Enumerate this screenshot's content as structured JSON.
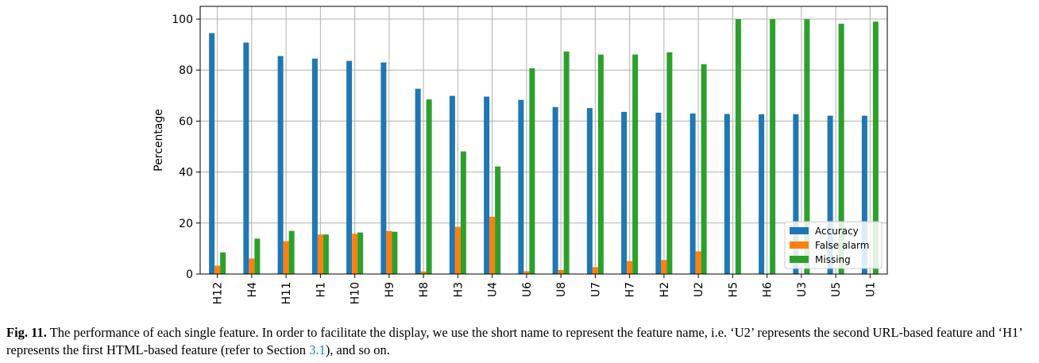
{
  "chart_data": {
    "type": "bar",
    "categories": [
      "H12",
      "H4",
      "H11",
      "H1",
      "H10",
      "H9",
      "H8",
      "H3",
      "U4",
      "U6",
      "U8",
      "U7",
      "H7",
      "H2",
      "U2",
      "H5",
      "H6",
      "U3",
      "U5",
      "U1"
    ],
    "series": [
      {
        "name": "Accuracy",
        "color": "#1f77b4",
        "values": [
          94.5,
          90.8,
          85.5,
          84.5,
          83.6,
          83.0,
          72.7,
          69.9,
          69.6,
          68.3,
          65.5,
          65.1,
          63.6,
          63.3,
          63.0,
          62.8,
          62.7,
          62.7,
          62.1,
          62.1
        ]
      },
      {
        "name": "False alarm",
        "color": "#ff7f0e",
        "values": [
          3.3,
          6.1,
          12.9,
          15.5,
          15.8,
          16.9,
          1.0,
          18.5,
          22.5,
          1.1,
          1.6,
          2.7,
          5.1,
          5.5,
          8.9,
          0,
          0,
          0,
          0,
          0
        ]
      },
      {
        "name": "Missing",
        "color": "#2ca02c",
        "values": [
          8.5,
          13.9,
          16.9,
          15.5,
          16.3,
          16.6,
          68.5,
          48.1,
          42.2,
          80.7,
          87.3,
          86.1,
          86.1,
          87.0,
          82.3,
          100,
          100,
          100,
          98.2,
          99.0
        ]
      }
    ],
    "xlabel": "",
    "ylabel": "Percentage",
    "ylim": [
      0,
      105
    ],
    "yticks": [
      0,
      20,
      40,
      60,
      80,
      100
    ],
    "grid": true,
    "legend_position": "bottom-right"
  },
  "caption": {
    "label": "Fig. 11.",
    "text_before_ref": " The performance of each single feature. In order to facilitate the display, we use the short name to represent the feature name, i.e. ‘U2’ represents the second URL-based feature and ‘H1’ represents the first HTML-based feature (refer to Section ",
    "ref": "3.1",
    "text_after_ref": "), and so on."
  }
}
